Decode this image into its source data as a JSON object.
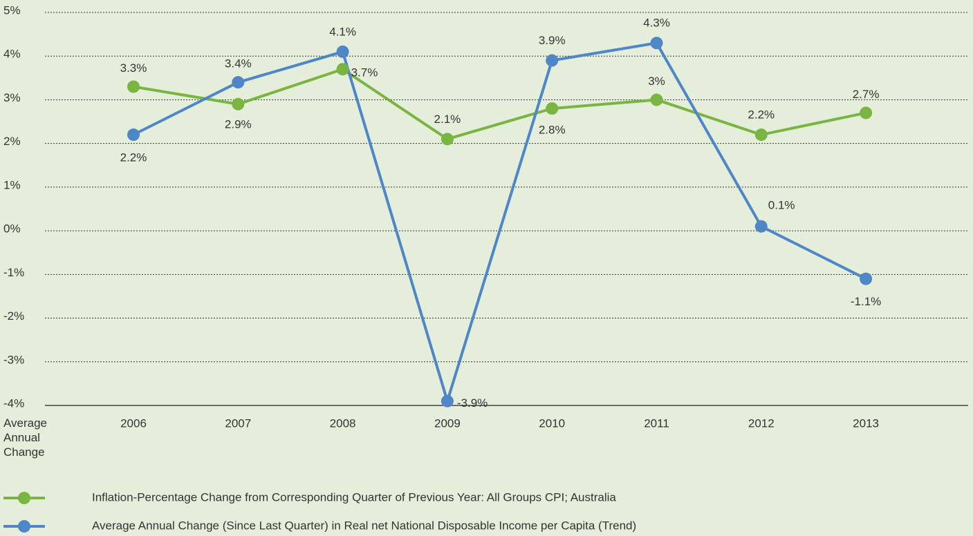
{
  "chart_data": {
    "type": "line",
    "categories": [
      "2006",
      "2007",
      "2008",
      "2009",
      "2010",
      "2011",
      "2012",
      "2013"
    ],
    "x_label": "Average Annual Change",
    "ylim": [
      -4,
      5
    ],
    "yticks": [
      {
        "value": -4,
        "label": "-4%"
      },
      {
        "value": -3,
        "label": "-3%"
      },
      {
        "value": -2,
        "label": "-2%"
      },
      {
        "value": -1,
        "label": "-1%"
      },
      {
        "value": 0,
        "label": "0%"
      },
      {
        "value": 1,
        "label": "1%"
      },
      {
        "value": 2,
        "label": "2%"
      },
      {
        "value": 3,
        "label": "3%"
      },
      {
        "value": 4,
        "label": "4%"
      },
      {
        "value": 5,
        "label": "5%"
      }
    ],
    "grid": true,
    "series": [
      {
        "name": "Inflation-Percentage Change from Corresponding Quarter of Previous Year: All Groups CPI; Australia",
        "color": "#7ab441",
        "values": [
          3.3,
          2.9,
          3.7,
          2.1,
          2.8,
          3,
          2.2,
          2.7
        ],
        "value_labels": [
          "3.3%",
          "2.9%",
          "3.7%",
          "2.1%",
          "2.8%",
          "3%",
          "2.2%",
          "2.7%"
        ]
      },
      {
        "name": "Average Annual Change (Since Last Quarter) in Real net National Disposable Income per Capita (Trend)",
        "color": "#4e86c8",
        "values": [
          2.2,
          3.4,
          4.1,
          -3.9,
          3.9,
          4.3,
          0.1,
          -1.1
        ],
        "value_labels": [
          "2.2%",
          "3.4%",
          "4.1%",
          "-3.9%",
          "3.9%",
          "4.3%",
          "0.1%",
          "-1.1%"
        ]
      }
    ]
  }
}
